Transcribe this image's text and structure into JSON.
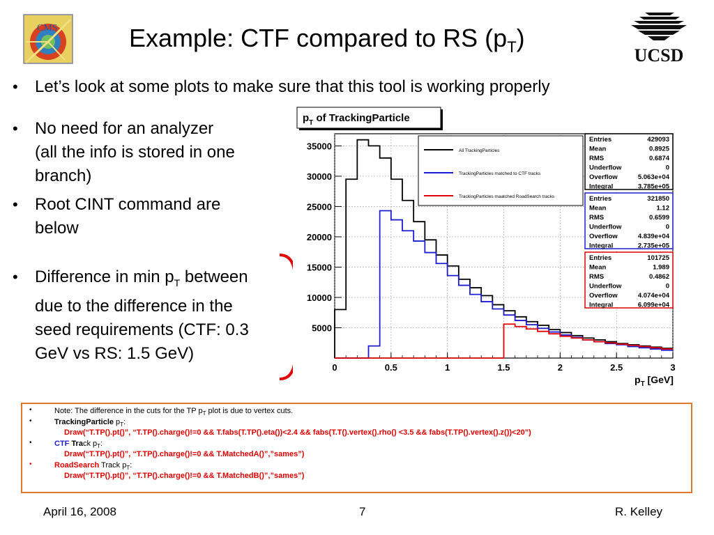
{
  "header": {
    "title_main": "Example: CTF compared to RS (p",
    "title_sub": "T",
    "title_end": ")"
  },
  "bullets": {
    "b1": "Let’s look at some plots to make sure that this tool is working properly",
    "b2_l1": "No need for an analyzer",
    "b2_l2": "(all the info is stored in one",
    "b2_l3": "branch)",
    "b3_l1": "Root CINT command are",
    "b3_l2": "below",
    "b4_l1a": "Difference in min p",
    "b4_l1sub": "T",
    "b4_l1b": " between",
    "b4_l2": "due to the difference in the",
    "b4_l3": "seed requirements (CTF: 0.3",
    "b4_l4": "GeV vs RS: 1.5 GeV)"
  },
  "chart_data": {
    "type": "line",
    "title": "p",
    "title_sub": "T",
    "title_rest": " of TrackingParticle",
    "xlabel": "p",
    "xlabel_sub": "T",
    "xlabel_unit": " [GeV]",
    "xlim": [
      0,
      3
    ],
    "ylim": [
      0,
      37000
    ],
    "xticks": [
      "0",
      "0.5",
      "1",
      "1.5",
      "2",
      "2.5",
      "3"
    ],
    "yticks": [
      "5000",
      "10000",
      "15000",
      "20000",
      "25000",
      "30000",
      "35000"
    ],
    "bin_width": 0.1,
    "series": [
      {
        "name": "All TrackingParticles",
        "color": "#000000",
        "values": [
          8000,
          29500,
          36000,
          35000,
          33000,
          29500,
          26000,
          22500,
          19500,
          17000,
          15200,
          13000,
          11600,
          10300,
          8800,
          7800,
          6800,
          6000,
          5400,
          4700,
          4200,
          3700,
          3300,
          3000,
          2700,
          2400,
          2200,
          2000,
          1800,
          1600
        ]
      },
      {
        "name": "TrackingParticles matched to CTF tracks",
        "color": "#1c1cd0",
        "values": [
          0,
          0,
          0,
          2000,
          24300,
          22800,
          21000,
          19300,
          17400,
          15600,
          13600,
          12000,
          10500,
          9300,
          8100,
          7100,
          6200,
          5500,
          4900,
          4300,
          3800,
          3400,
          3000,
          2700,
          2400,
          2200,
          1900,
          1700,
          1500,
          1300
        ]
      },
      {
        "name": "TrackingParticles maatched RoadSearch tracks",
        "color": "#e00000",
        "values": [
          0,
          0,
          0,
          0,
          0,
          0,
          0,
          0,
          0,
          0,
          0,
          0,
          0,
          0,
          0,
          5600,
          5200,
          4800,
          4400,
          4000,
          3600,
          3300,
          3000,
          2700,
          2500,
          2300,
          2100,
          1900,
          1700,
          1500
        ]
      }
    ],
    "stats": [
      {
        "color": "#000000",
        "rows": [
          [
            "Entries",
            "429093"
          ],
          [
            "Mean",
            "0.8925"
          ],
          [
            "RMS",
            "0.6874"
          ],
          [
            "Underflow",
            "0"
          ],
          [
            "Overflow",
            "5.063e+04"
          ],
          [
            "Integral",
            "3.785e+05"
          ]
        ]
      },
      {
        "color": "#1c1cd0",
        "rows": [
          [
            "Entries",
            "321850"
          ],
          [
            "Mean",
            "1.12"
          ],
          [
            "RMS",
            "0.6599"
          ],
          [
            "Underflow",
            "0"
          ],
          [
            "Overflow",
            "4.839e+04"
          ],
          [
            "Integral",
            "2.735e+05"
          ]
        ]
      },
      {
        "color": "#e00000",
        "rows": [
          [
            "Entries",
            "101725"
          ],
          [
            "Mean",
            "1.989"
          ],
          [
            "RMS",
            "0.4862"
          ],
          [
            "Underflow",
            "0"
          ],
          [
            "Overflow",
            "4.074e+04"
          ],
          [
            "Integral",
            "6.099e+04"
          ]
        ]
      }
    ]
  },
  "notes": {
    "n1": "Note:  The difference in the cuts for the TP p",
    "n1_sub": "T",
    "n1_end": " plot is due to vertex cuts.",
    "n2_label": "TrackingParticle",
    "n2_rest": " p",
    "n2_sub": "T",
    "n2_colon": ":",
    "n2_cmd": "Draw(“T.TP().pt()”, “T.TP().charge()!=0 && T.fabs(T.TP().eta())<2.4 && fabs(T.T().vertex().rho() <3.5 && fabs(T.TP().vertex().z())<20”)",
    "n3_ctf": "CTF",
    "n3_tra": " Tra",
    "n3_ck": "ck p",
    "n3_sub": "T",
    "n3_colon": ":",
    "n3_cmd": "Draw(“T.TP().pt()”, “T.TP().charge()!=0 && T.MatchedA()”,”sames”)",
    "n4_rs": "RoadSearch",
    "n4_rest": " Track p",
    "n4_sub": "T",
    "n4_colon": ":",
    "n4_cmd": "Draw(“T.TP().pt()”, “T.TP().charge()!=0 && T.MatchedB()”,”sames”)"
  },
  "footer": {
    "date": "April 16, 2008",
    "page": "7",
    "author": "R. Kelley"
  },
  "colors": {
    "accent_orange": "#e0782a",
    "red": "#e00000",
    "blue": "#1c1cd0"
  }
}
